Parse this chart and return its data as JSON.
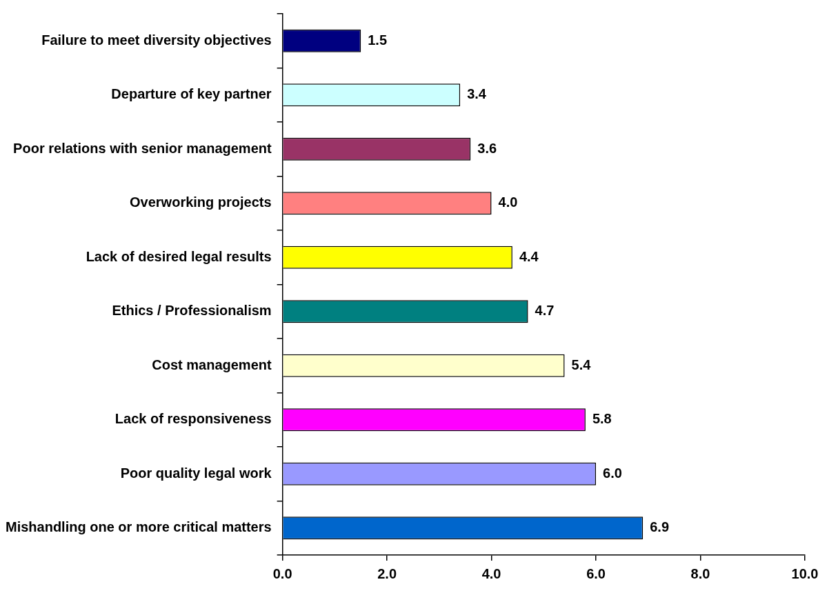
{
  "chart_data": {
    "type": "bar",
    "orientation": "horizontal",
    "categories": [
      "Failure to meet diversity objectives",
      "Departure of key partner",
      "Poor relations with senior management",
      "Overworking projects",
      "Lack of desired legal results",
      "Ethics / Professionalism",
      "Cost management",
      "Lack of responsiveness",
      "Poor quality legal work",
      "Mishandling one or more critical matters"
    ],
    "values": [
      1.5,
      3.4,
      3.6,
      4.0,
      4.4,
      4.7,
      5.4,
      5.8,
      6.0,
      6.9
    ],
    "value_labels": [
      "1.5",
      "3.4",
      "3.6",
      "4.0",
      "4.4",
      "4.7",
      "5.4",
      "5.8",
      "6.0",
      "6.9"
    ],
    "colors": [
      "#000080",
      "#ccffff",
      "#993366",
      "#ff8080",
      "#ffff00",
      "#008080",
      "#ffffcc",
      "#ff00ff",
      "#9999ff",
      "#0066cc"
    ],
    "xlim": [
      0,
      10
    ],
    "xticks": [
      {
        "value": 0,
        "label": "0.0"
      },
      {
        "value": 2,
        "label": "2.0"
      },
      {
        "value": 4,
        "label": "4.0"
      },
      {
        "value": 6,
        "label": "6.0"
      },
      {
        "value": 8,
        "label": "8.0"
      },
      {
        "value": 10,
        "label": "10.0"
      }
    ],
    "grid": false,
    "legend": false
  }
}
